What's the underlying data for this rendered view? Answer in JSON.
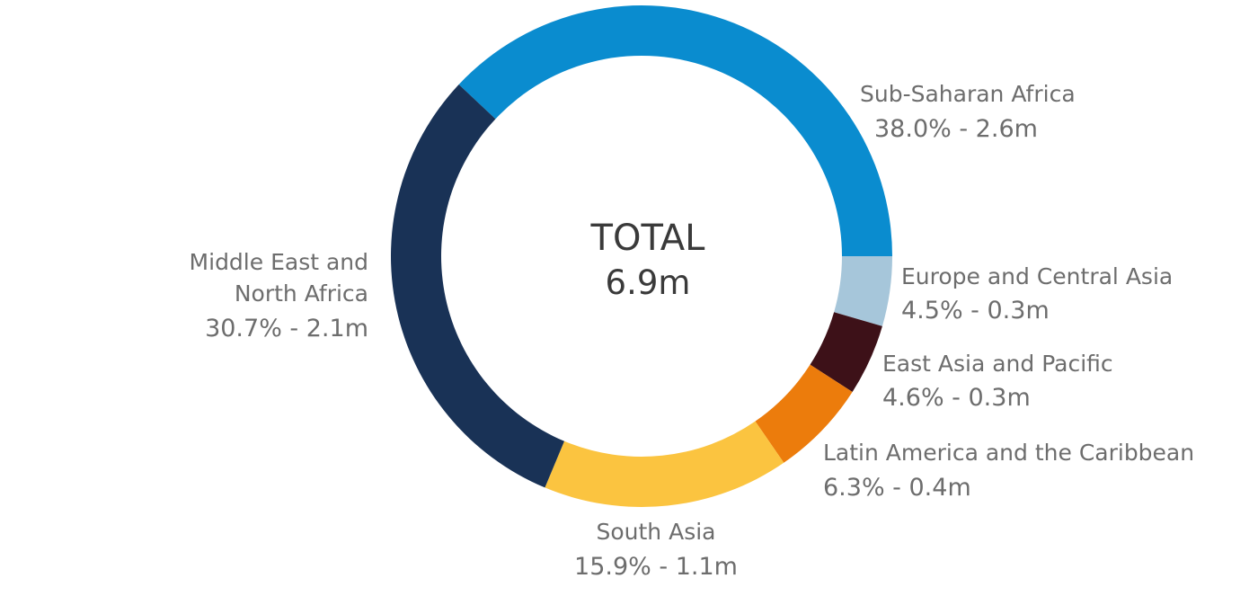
{
  "chart_data": {
    "type": "pie",
    "center": {
      "title": "TOTAL",
      "value": "6.9m"
    },
    "slices": [
      {
        "name": "Sub-Saharan Africa",
        "percent": 38.0,
        "value": "2.6m",
        "value_label": "38.0% - 2.6m",
        "color": "#0a8ccf"
      },
      {
        "name": "Europe and Central Asia",
        "percent": 4.5,
        "value": "0.3m",
        "value_label": "4.5% - 0.3m",
        "color": "#a6c6da"
      },
      {
        "name": "East Asia and Pacific",
        "percent": 4.6,
        "value": "0.3m",
        "value_label": "4.6% - 0.3m",
        "color": "#3d1118"
      },
      {
        "name": "Latin America and the Caribbean",
        "percent": 6.3,
        "value": "0.4m",
        "value_label": "6.3% - 0.4m",
        "color": "#ec7c0c"
      },
      {
        "name": "South Asia",
        "percent": 15.9,
        "value": "1.1m",
        "value_label": "15.9% - 1.1m",
        "color": "#fbc440"
      },
      {
        "name": "Middle East and North Africa",
        "name_lines": [
          "Middle East and",
          "North Africa"
        ],
        "percent": 30.7,
        "value": "2.1m",
        "value_label": "30.7% - 2.1m",
        "color": "#193256"
      }
    ]
  }
}
